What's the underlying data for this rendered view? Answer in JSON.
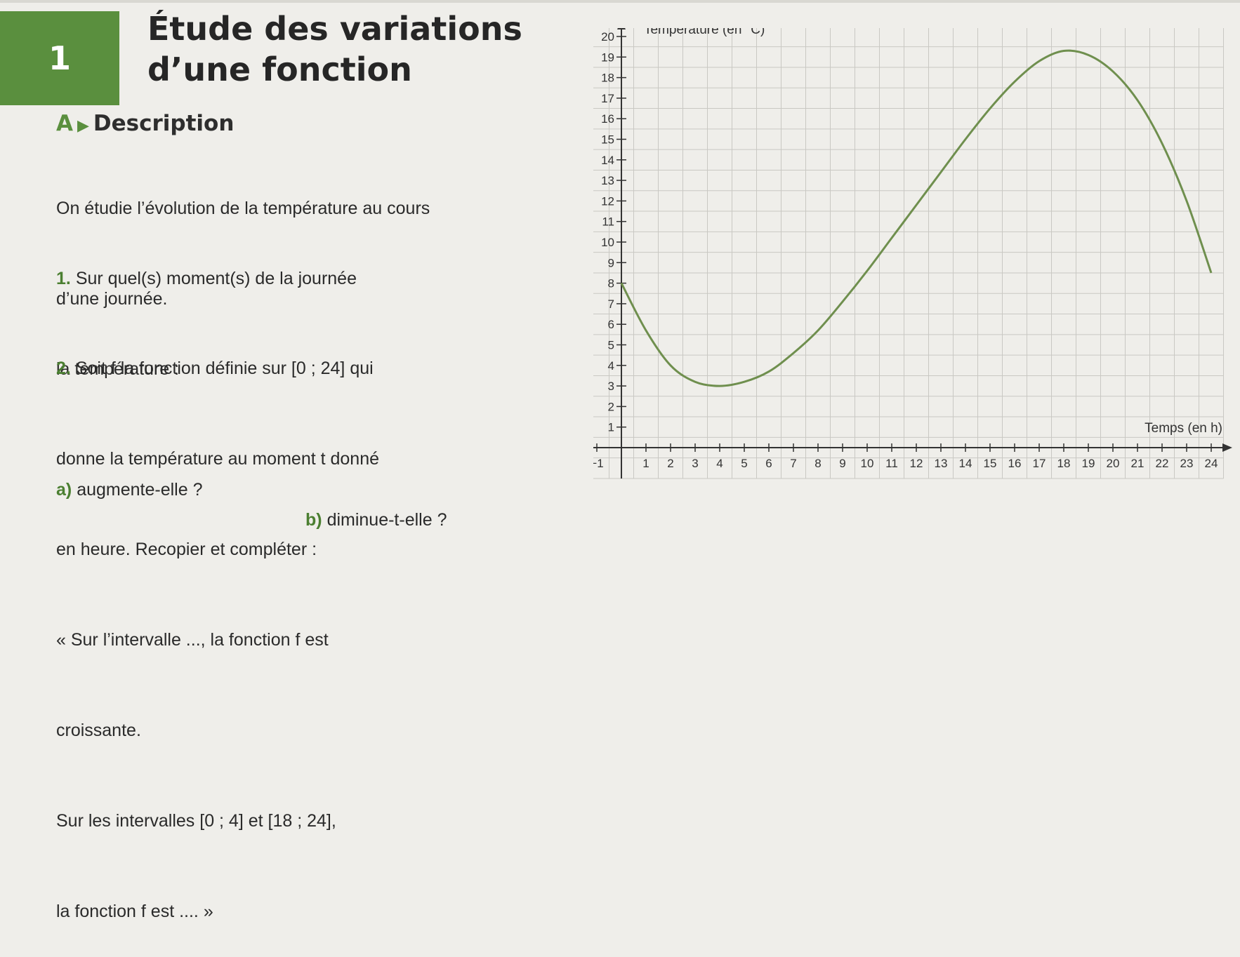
{
  "exercise": {
    "number": "1",
    "title_line1": "Étude des variations",
    "title_line2": "d’une fonction"
  },
  "section": {
    "letter": "A",
    "arrow": "▶",
    "title": "Description"
  },
  "intro": {
    "line1": "On étudie l’évolution de la température au cours",
    "line2": "d’une journée."
  },
  "q1": {
    "number": "1.",
    "line1": "Sur quel(s) moment(s) de la journée",
    "line2": "la température :",
    "a_label": "a)",
    "a_text": "augmente-elle ?",
    "b_label": "b)",
    "b_text": "diminue-t-elle ?"
  },
  "q2": {
    "number": "2.",
    "line1": "Soit f la fonction définie sur [0 ; 24] qui",
    "line2": "donne la température au moment t donné",
    "line3": "en heure. Recopier et compléter :",
    "line4": "« Sur l’intervalle ..., la fonction f est",
    "line5": "croissante.",
    "line6": "Sur les intervalles [0 ; 4] et [18 ; 24],",
    "line7": "la fonction f est .... »"
  },
  "chart_data": {
    "type": "line",
    "ylabel": "Température (en °C)",
    "xlabel": "Temps (en h)",
    "xlim": [
      -1,
      24
    ],
    "ylim": [
      0,
      20
    ],
    "x_ticks": [
      -1,
      1,
      2,
      3,
      4,
      5,
      6,
      7,
      8,
      9,
      10,
      11,
      12,
      13,
      14,
      15,
      16,
      17,
      18,
      19,
      20,
      21,
      22,
      23,
      24
    ],
    "x_tick_labels": [
      "−1",
      "1",
      "2",
      "3",
      "4",
      "5",
      "6",
      "7",
      "8",
      "9",
      "10",
      "11",
      "12",
      "13",
      "14",
      "15",
      "16",
      "17",
      "18",
      "19",
      "20",
      "21",
      "22",
      "23",
      "24"
    ],
    "y_ticks": [
      1,
      2,
      3,
      4,
      5,
      6,
      7,
      8,
      9,
      10,
      11,
      12,
      13,
      14,
      15,
      16,
      17,
      18,
      19,
      20
    ],
    "grid": true,
    "series": [
      {
        "color": "#6f8f4e",
        "x": [
          0,
          1,
          2,
          3,
          4,
          5,
          6,
          7,
          8,
          9,
          10,
          11,
          12,
          13,
          14,
          15,
          16,
          17,
          18,
          19,
          20,
          21,
          22,
          23,
          24
        ],
        "y": [
          8,
          5.7,
          4,
          3.2,
          3,
          3.2,
          3.7,
          4.6,
          5.7,
          7.1,
          8.6,
          10.2,
          11.8,
          13.4,
          15,
          16.5,
          17.8,
          18.8,
          19.3,
          19.1,
          18.3,
          16.9,
          14.8,
          12,
          8.5
        ]
      }
    ]
  },
  "colors": {
    "accent": "#5a8f3e",
    "curve": "#6f8f4e"
  }
}
